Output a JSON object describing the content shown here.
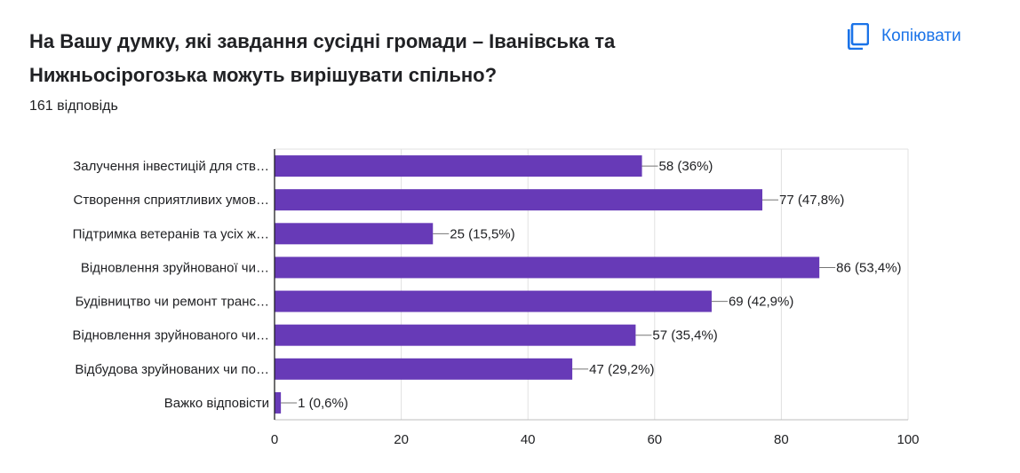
{
  "question": {
    "title": "На Вашу думку, які завдання сусідні громади – Іванівська та Нижньосірогозька можуть вирішувати спільно?",
    "responses": "161 відповідь"
  },
  "toolbar": {
    "copy_label": "Копіювати",
    "copy_icon": "copy-icon"
  },
  "colors": {
    "bar": "#673ab7",
    "accent": "#1a73e8",
    "grid": "#e0e0e0"
  },
  "chart_data": {
    "type": "bar",
    "orientation": "horizontal",
    "categories": [
      "Залучення інвестицій для ств…",
      "Створення сприятливих умов…",
      "Підтримка ветеранів та усіх ж…",
      "Відновлення зруйнованої чи…",
      "Будівництво чи ремонт транс…",
      "Відновлення зруйнованого чи…",
      "Відбудова зруйнованих чи по…",
      "Важко відповісти"
    ],
    "values": [
      58,
      77,
      25,
      86,
      69,
      57,
      47,
      1
    ],
    "data_labels": [
      "58 (36%)",
      "77 (47,8%)",
      "25 (15,5%)",
      "86 (53,4%)",
      "69 (42,9%)",
      "57 (35,4%)",
      "47 (29,2%)",
      "1 (0,6%)"
    ],
    "xlim": [
      0,
      100
    ],
    "x_ticks": [
      0,
      20,
      40,
      60,
      80,
      100
    ],
    "grid": true,
    "legend": "none"
  }
}
